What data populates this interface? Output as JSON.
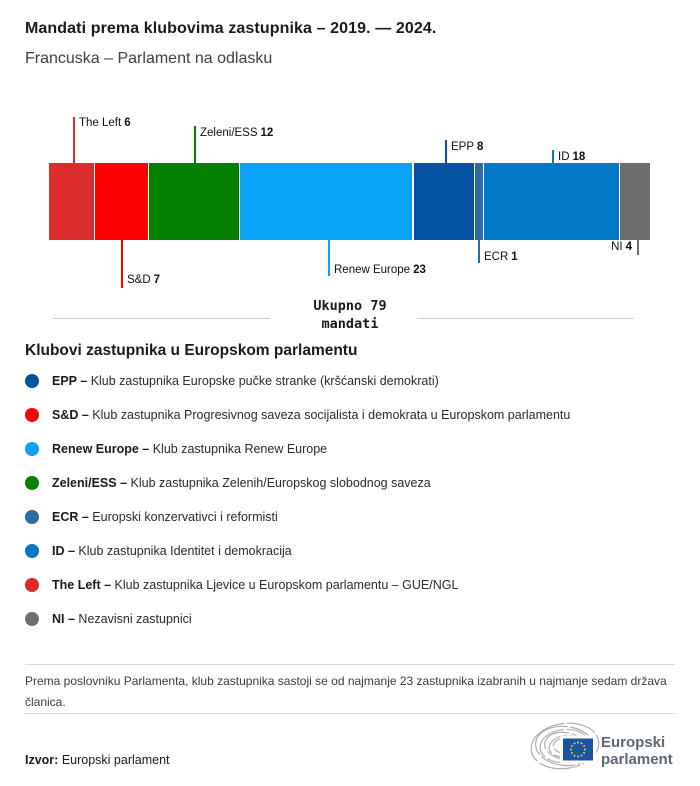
{
  "header": {
    "title": "Mandati prema klubovima zastupnika – 2019. — 2024.",
    "subtitle": "Francuska – Parlament na odlasku"
  },
  "chart_data": {
    "type": "bar",
    "variant": "stacked-horizontal-seat-strip",
    "title": "Mandati prema klubovima zastupnika – 2019. — 2024.",
    "subtitle": "Francuska – Parlament na odlasku",
    "total": 79,
    "total_label": {
      "line1": "Ukupno 79",
      "line2": "mandati"
    },
    "legend_position": "bottom",
    "grid": false,
    "groups": [
      {
        "id": "the-left",
        "label": "The Left",
        "seats": 6,
        "color": "#dc2c2c",
        "callout": "above"
      },
      {
        "id": "sd",
        "label": "S&D",
        "seats": 7,
        "color": "#fe0000",
        "callout": "below"
      },
      {
        "id": "zeleni",
        "label": "Zeleni/ESS",
        "seats": 12,
        "color": "#038000",
        "callout": "above"
      },
      {
        "id": "renew",
        "label": "Renew Europe",
        "seats": 23,
        "color": "#0ba2f9",
        "callout": "below"
      },
      {
        "id": "epp",
        "label": "EPP",
        "seats": 8,
        "color": "#0353a1",
        "callout": "above"
      },
      {
        "id": "ecr",
        "label": "ECR",
        "seats": 1,
        "color": "#2d6ca3",
        "callout": "below"
      },
      {
        "id": "id",
        "label": "ID",
        "seats": 18,
        "color": "#0378c7",
        "callout": "above"
      },
      {
        "id": "ni",
        "label": "NI",
        "seats": 4,
        "color": "#6c6e70",
        "callout": "below"
      }
    ]
  },
  "legend": {
    "heading": "Klubovi zastupnika u Europskom parlamentu",
    "items": [
      {
        "key": "EPP –",
        "desc": "Klub zastupnika Europske pučke stranke (kršćanski demokrati)",
        "color": "#0353a1"
      },
      {
        "key": "S&D –",
        "desc": "Klub zastupnika Progresivnog saveza socijalista i demokrata u Europskom parlamentu",
        "color": "#fe0000"
      },
      {
        "key": "Renew Europe –",
        "desc": "Klub zastupnika Renew Europe",
        "color": "#0ba2f9"
      },
      {
        "key": "Zeleni/ESS –",
        "desc": "Klub zastupnika Zelenih/Europskog slobodnog saveza",
        "color": "#038000"
      },
      {
        "key": "ECR –",
        "desc": "Europski konzervativci i reformisti",
        "color": "#2d6ca3"
      },
      {
        "key": "ID –",
        "desc": "Klub zastupnika Identitet i demokracija",
        "color": "#0378c7"
      },
      {
        "key": "The Left –",
        "desc": "Klub zastupnika Ljevice u Europskom parlamentu – GUE/NGL",
        "color": "#dc2c2c"
      },
      {
        "key": "NI –",
        "desc": "Nezavisni zastupnici",
        "color": "#6c6e70"
      }
    ]
  },
  "footnote": "Prema poslovniku Parlamenta, klub zastupnika sastoji se od najmanje 23 zastupnika izabranih u najmanje sedam država članica.",
  "source": {
    "prefix": "Izvor:",
    "text": "Europski parlament"
  },
  "logo": {
    "line1": "Europski",
    "line2": "parlament"
  }
}
